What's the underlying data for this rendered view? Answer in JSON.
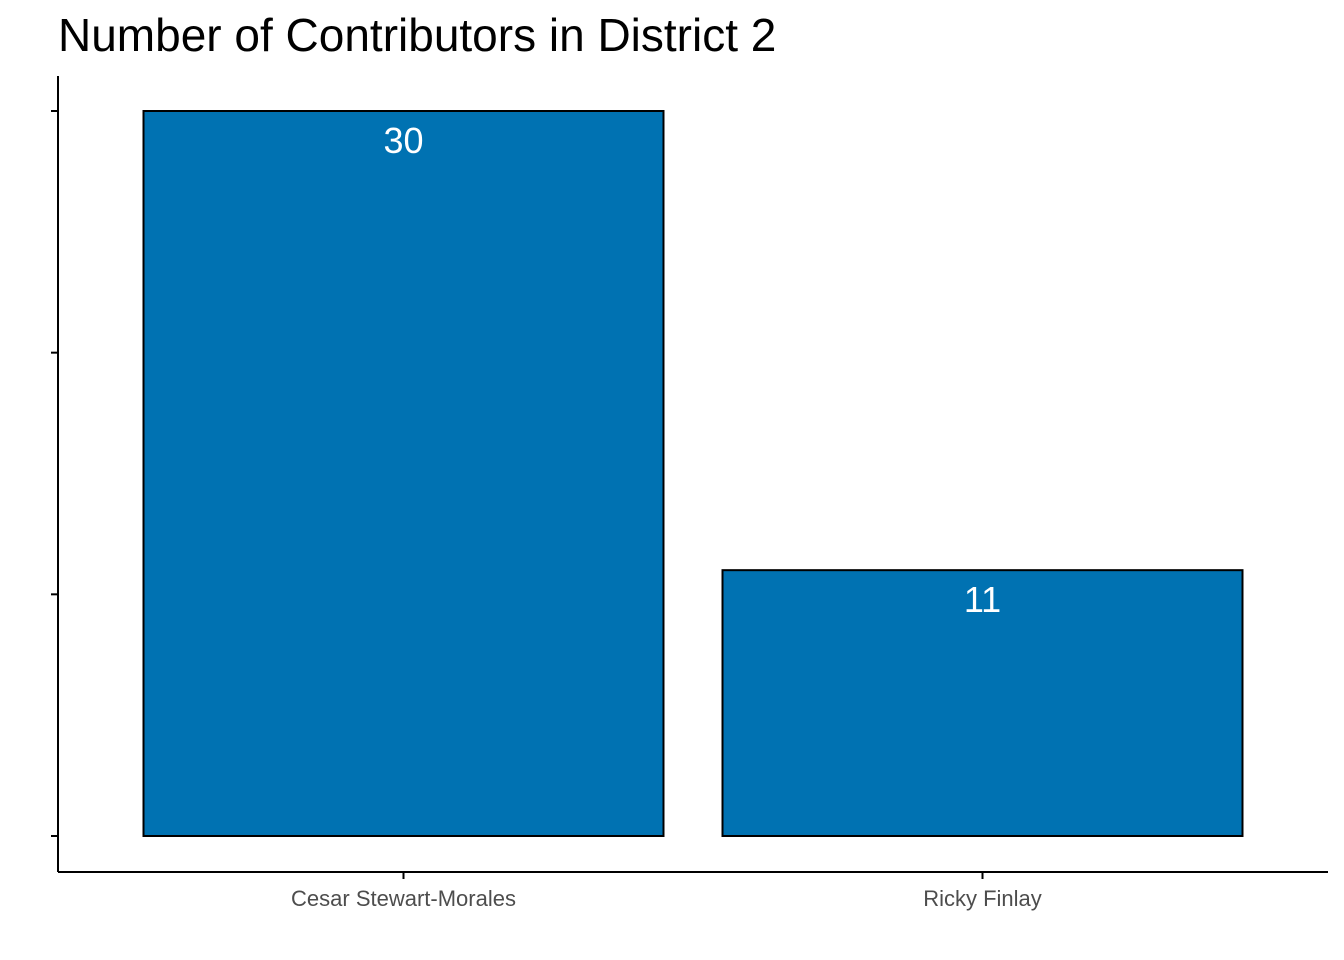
{
  "chart_data": {
    "type": "bar",
    "title": "Number of Contributors in District 2",
    "xlabel": "",
    "ylabel": "",
    "categories": [
      "Cesar Stewart-Morales",
      "Ricky Finlay"
    ],
    "values": [
      30,
      11
    ],
    "data_labels": [
      "30",
      "11"
    ],
    "ylim": [
      0,
      30
    ],
    "y_ticks": [
      0,
      10,
      20,
      30
    ],
    "y_tick_labels_shown": false,
    "grid": false,
    "legend": "none",
    "colors": {
      "bar_fill": "#0072B2",
      "bar_stroke": "#000000",
      "axis": "#000000",
      "data_label": "#ffffff"
    }
  }
}
